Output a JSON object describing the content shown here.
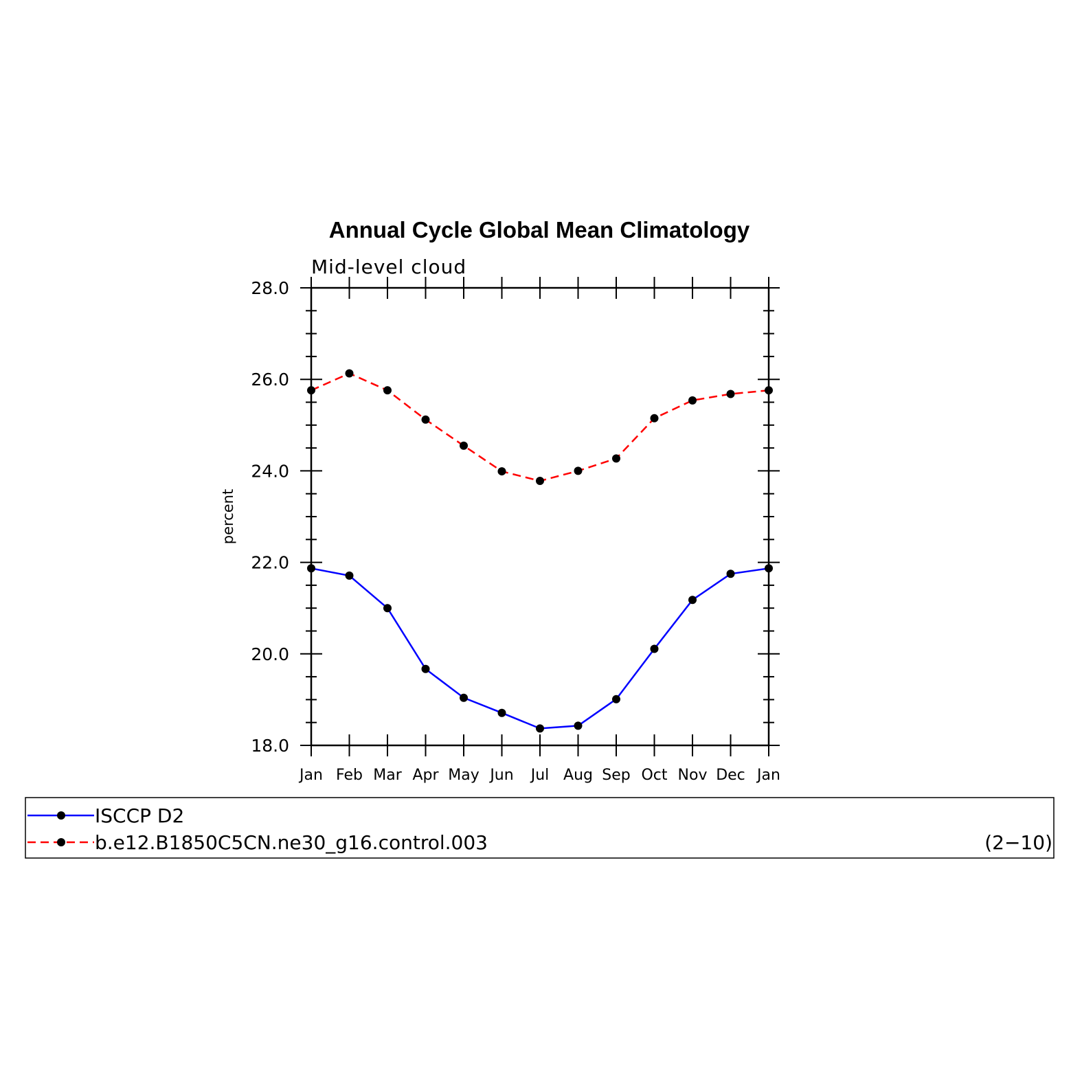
{
  "chart_data": {
    "type": "line",
    "title": "Annual Cycle Global Mean Climatology",
    "subtitle": "Mid-level cloud",
    "ylabel": "percent",
    "ylim": [
      18.0,
      28.0
    ],
    "y_ticks": [
      "18.0",
      "20.0",
      "22.0",
      "24.0",
      "26.0",
      "28.0"
    ],
    "y_minor_step": 0.5,
    "grid": false,
    "categories": [
      "Jan",
      "Feb",
      "Mar",
      "Apr",
      "May",
      "Jun",
      "Jul",
      "Aug",
      "Sep",
      "Oct",
      "Nov",
      "Dec",
      "Jan"
    ],
    "series": [
      {
        "name": "ISCCP D2",
        "color": "#0000ff",
        "dash": "solid",
        "values": [
          21.87,
          21.71,
          21.0,
          19.67,
          19.04,
          18.71,
          18.37,
          18.43,
          19.01,
          20.11,
          21.18,
          21.75,
          21.87
        ]
      },
      {
        "name": "b.e12.B1850C5CN.ne30_g16.control.003",
        "color": "#ff0000",
        "dash": "dashed",
        "values": [
          25.76,
          26.13,
          25.76,
          25.12,
          24.55,
          23.99,
          23.78,
          24.0,
          24.27,
          25.15,
          25.54,
          25.68,
          25.76
        ]
      }
    ],
    "legend": {
      "placement": "bottom",
      "note": "(2−10)"
    }
  }
}
